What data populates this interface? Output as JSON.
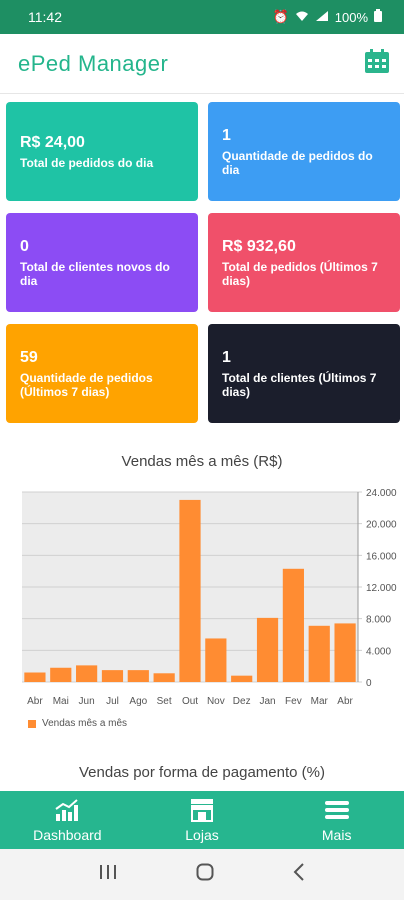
{
  "status": {
    "time": "11:42",
    "battery": "100%"
  },
  "app": {
    "title": "ePed Manager",
    "calendar_icon": "calendar-icon"
  },
  "cards": [
    {
      "value": "R$ 24,00",
      "label": "Total de pedidos do dia",
      "color": "#1fc3a5"
    },
    {
      "value": "1",
      "label": "Quantidade de pedidos do dia",
      "color": "#3d9df3"
    },
    {
      "value": "0",
      "label": "Total de clientes novos do dia",
      "color": "#8c4cf4"
    },
    {
      "value": "R$ 932,60",
      "label": "Total de pedidos (Últimos 7 dias)",
      "color": "#f0506a"
    },
    {
      "value": "59",
      "label": "Quantidade de pedidos (Últimos 7 dias)",
      "color": "#ffa300"
    },
    {
      "value": "1",
      "label": "Total de clientes (Últimos 7 dias)",
      "color": "#1b1e2c"
    }
  ],
  "chart_data": {
    "type": "bar",
    "title": "Vendas mês a mês (R$)",
    "categories": [
      "Abr",
      "Mai",
      "Jun",
      "Jul",
      "Ago",
      "Set",
      "Out",
      "Nov",
      "Dez",
      "Jan",
      "Fev",
      "Mar",
      "Abr"
    ],
    "series": [
      {
        "name": "Vendas mês a mês",
        "values": [
          1200,
          1800,
          2100,
          1500,
          1500,
          1100,
          23000,
          5500,
          800,
          8100,
          14300,
          7100,
          7400
        ],
        "color": "#ff8c32"
      }
    ],
    "ylim": [
      0,
      24000
    ],
    "yticks": [
      "0",
      "4.000",
      "8.000",
      "12.000",
      "16.000",
      "20.000",
      "24.000"
    ],
    "ytick_values": [
      0,
      4000,
      8000,
      12000,
      16000,
      20000,
      24000
    ],
    "legend": "bottom-left",
    "grid": true
  },
  "section2": {
    "title": "Vendas por forma de pagamento (%)"
  },
  "nav": [
    {
      "label": "Dashboard",
      "icon": "chart-icon"
    },
    {
      "label": "Lojas",
      "icon": "store-icon"
    },
    {
      "label": "Mais",
      "icon": "menu-icon"
    }
  ]
}
